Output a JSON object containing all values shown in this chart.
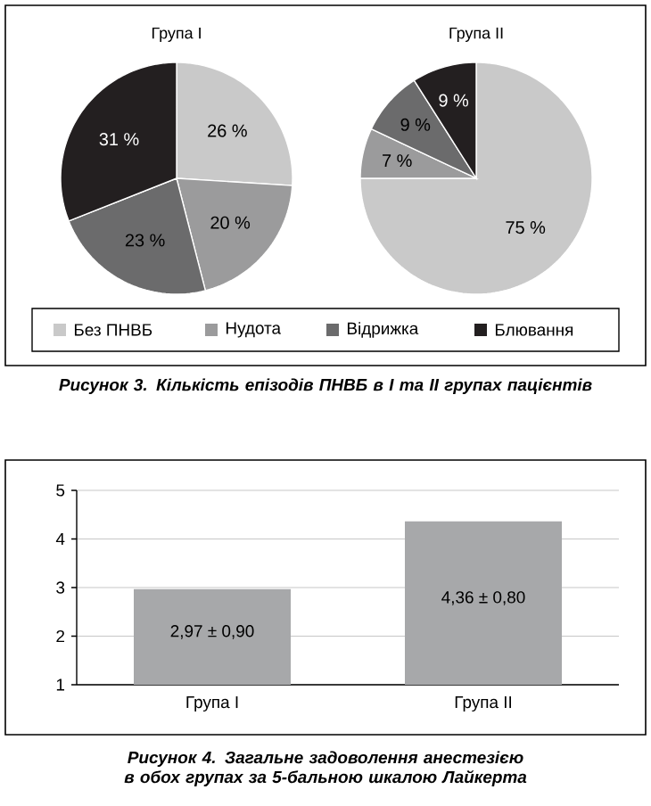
{
  "chart_data": [
    {
      "type": "pie",
      "title": "Група I",
      "categories": [
        "Без ПНВБ",
        "Нудота",
        "Відрижка",
        "Блювання"
      ],
      "values": [
        26,
        20,
        23,
        31
      ],
      "colors": [
        "#c9c9c9",
        "#9b9b9c",
        "#6b6b6c",
        "#231f20"
      ],
      "value_labels": [
        "26 %",
        "20 %",
        "23 %",
        "31 %"
      ],
      "legend": "bottom",
      "annotations": [
        "Рисунок 3. Кількість епізодів ПНВБ в І та ІІ групах пацієнтів"
      ]
    },
    {
      "type": "pie",
      "title": "Група II",
      "categories": [
        null,
        null,
        null,
        null
      ],
      "values": [
        75,
        7,
        9,
        9
      ],
      "colors": [
        "#c9c9c9",
        "#9b9b9c",
        "#6b6b6c",
        "#231f20"
      ],
      "value_labels": [
        "75 %",
        "7 %",
        "9 %",
        "9 %"
      ]
    },
    {
      "type": "bar",
      "categories": [
        "Група I",
        "Група II"
      ],
      "values": [
        2.97,
        4.36
      ],
      "color": "#a7a8aa",
      "ylim": [
        1,
        5
      ],
      "yticks": [
        1,
        2,
        3,
        4,
        5
      ],
      "grid": "y",
      "value_labels": [
        "2,97 ± 0,90",
        "4,36 ± 0,80"
      ],
      "annotations": [
        "Рисунок 4. Загальне задоволення анестезією в обох групах за 5-бальною шкалою Лайкерта"
      ]
    }
  ]
}
